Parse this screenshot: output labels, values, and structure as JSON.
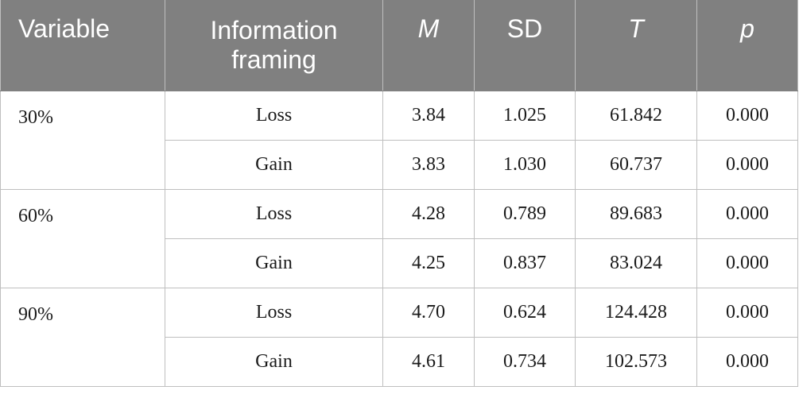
{
  "table": {
    "headers": [
      "Variable",
      "Information framing",
      "M",
      "SD",
      "T",
      "p"
    ],
    "groups": [
      {
        "variable": "30%",
        "rows": [
          {
            "framing": "Loss",
            "M": "3.84",
            "SD": "1.025",
            "T": "61.842",
            "p": "0.000"
          },
          {
            "framing": "Gain",
            "M": "3.83",
            "SD": "1.030",
            "T": "60.737",
            "p": "0.000"
          }
        ]
      },
      {
        "variable": "60%",
        "rows": [
          {
            "framing": "Loss",
            "M": "4.28",
            "SD": "0.789",
            "T": "89.683",
            "p": "0.000"
          },
          {
            "framing": "Gain",
            "M": "4.25",
            "SD": "0.837",
            "T": "83.024",
            "p": "0.000"
          }
        ]
      },
      {
        "variable": "90%",
        "rows": [
          {
            "framing": "Loss",
            "M": "4.70",
            "SD": "0.624",
            "T": "124.428",
            "p": "0.000"
          },
          {
            "framing": "Gain",
            "M": "4.61",
            "SD": "0.734",
            "T": "102.573",
            "p": "0.000"
          }
        ]
      }
    ]
  },
  "colors": {
    "header_background": "#808080",
    "header_text": "#ffffff",
    "grid_lines": "#bfbfbf"
  }
}
